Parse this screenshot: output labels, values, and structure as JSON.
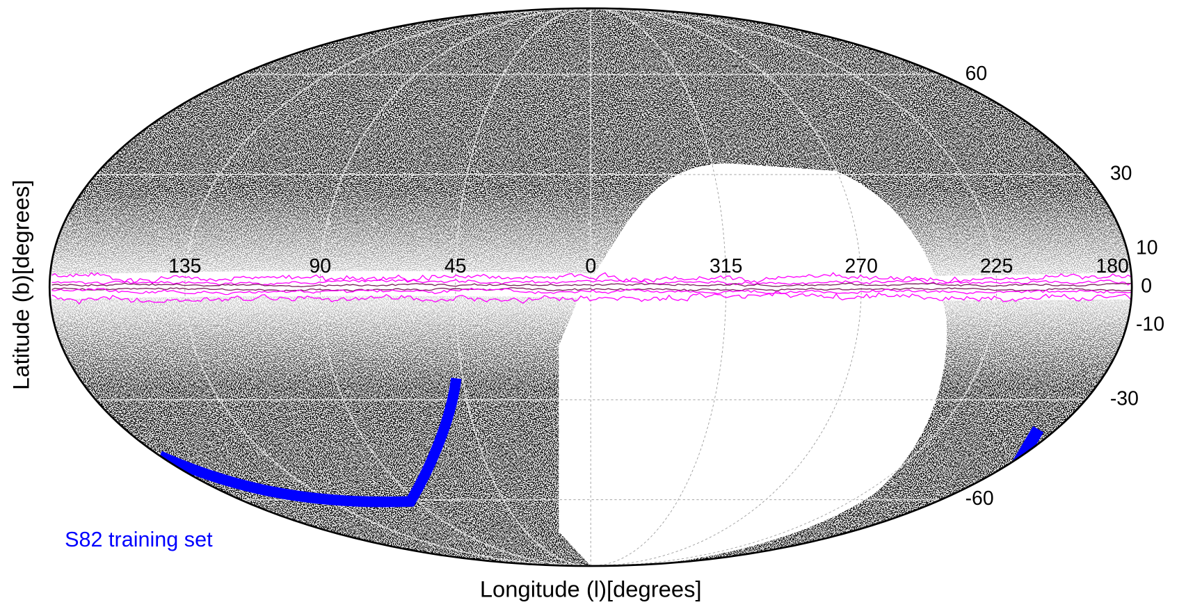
{
  "map": {
    "projection": "mollweide",
    "x_label": "Longitude (l)[degrees]",
    "y_label": "Latitude (b)[degrees]",
    "longitude_ticks": [
      135,
      90,
      45,
      0,
      315,
      270,
      225,
      180
    ],
    "latitude_ticks": [
      60,
      30,
      10,
      0,
      -10,
      -30,
      -60
    ],
    "legend": {
      "label": "S82 training set",
      "color": "#0000ff"
    }
  }
}
